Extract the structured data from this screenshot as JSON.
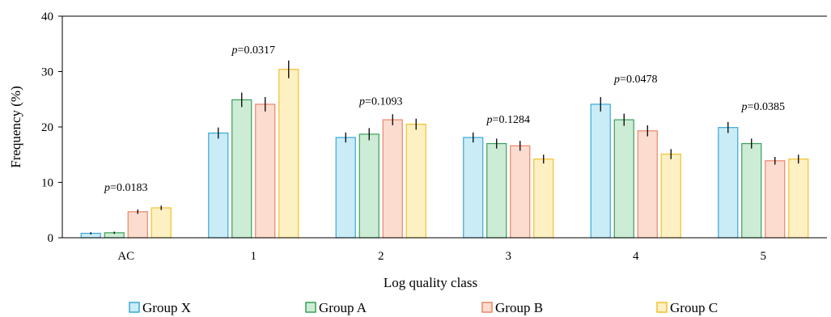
{
  "chart_data": {
    "type": "bar",
    "title": "",
    "xlabel": "Log quality  class",
    "ylabel": "Frequency (%)",
    "ylim": [
      0,
      40
    ],
    "yticks": [
      "0",
      "10",
      "20",
      "30",
      "40"
    ],
    "categories": [
      "AC",
      "1",
      "2",
      "3",
      "4",
      "5"
    ],
    "series": [
      {
        "name": "Group X",
        "color": "#3aa8d8",
        "fill": "#c9ecf7",
        "values": [
          0.8,
          18.9,
          18.1,
          18.1,
          24.1,
          19.9
        ],
        "errors": [
          0.2,
          1.0,
          0.9,
          0.9,
          1.3,
          1.0
        ]
      },
      {
        "name": "Group A",
        "color": "#3aa05a",
        "fill": "#cdecd5",
        "values": [
          0.9,
          24.9,
          18.7,
          17.0,
          21.3,
          17.0
        ],
        "errors": [
          0.2,
          1.3,
          1.1,
          0.9,
          1.1,
          0.9
        ]
      },
      {
        "name": "Group B",
        "color": "#e8866a",
        "fill": "#fbdccf",
        "values": [
          4.7,
          24.1,
          21.3,
          16.6,
          19.3,
          13.9
        ],
        "errors": [
          0.4,
          1.3,
          1.0,
          0.9,
          1.0,
          0.7
        ]
      },
      {
        "name": "Group C",
        "color": "#f2c12e",
        "fill": "#fdf0c2",
        "values": [
          5.4,
          30.4,
          20.5,
          14.2,
          15.1,
          14.2
        ],
        "errors": [
          0.4,
          1.6,
          1.0,
          0.8,
          0.9,
          0.8
        ]
      }
    ],
    "annotations": [
      {
        "prefix": "p",
        "text": "=0.0183",
        "category": "AC",
        "y": 8.5
      },
      {
        "prefix": "p",
        "text": "=0.0317",
        "category": "1",
        "y": 33.3
      },
      {
        "prefix": "p",
        "text": "=0.1093",
        "category": "2",
        "y": 24.0
      },
      {
        "prefix": "p",
        "text": "=0.1284",
        "category": "3",
        "y": 20.7
      },
      {
        "prefix": "p",
        "text": "=0.0478",
        "category": "4",
        "y": 28.0
      },
      {
        "prefix": "p",
        "text": "=0.0385",
        "category": "5",
        "y": 23.1
      }
    ],
    "grid": false,
    "legend_position": "bottom"
  }
}
